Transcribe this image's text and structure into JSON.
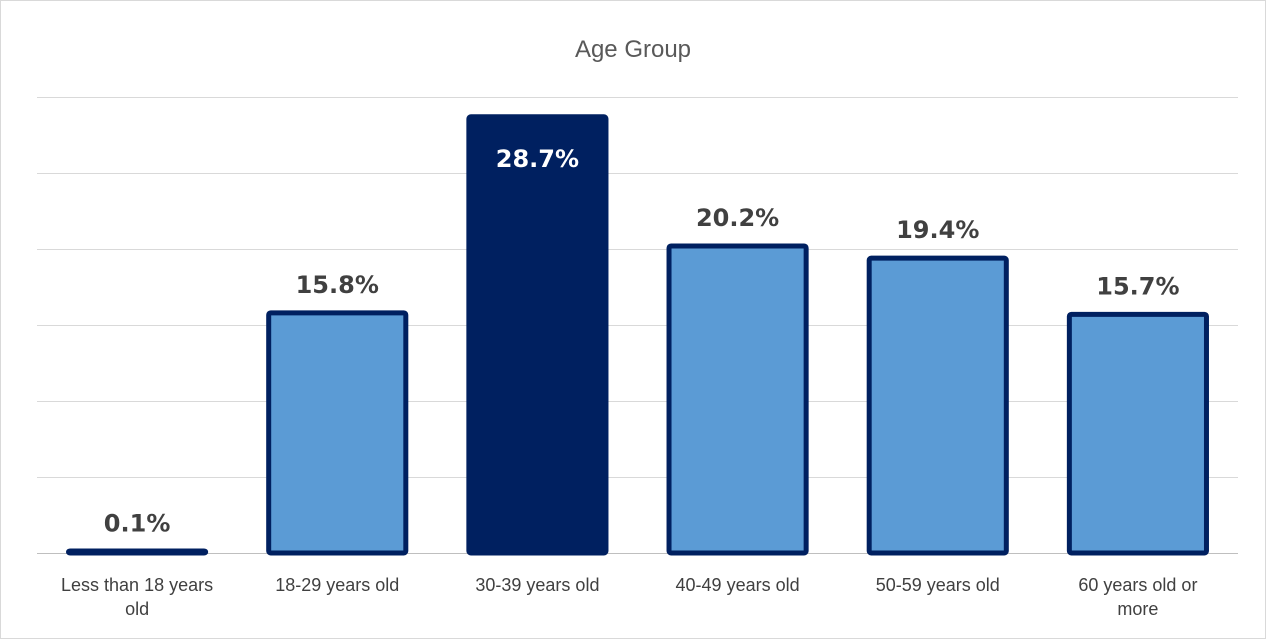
{
  "chart_data": {
    "type": "bar",
    "title": "Age Group",
    "categories": [
      [
        "Less than 18 years",
        "old"
      ],
      [
        "18-29 years old"
      ],
      [
        "30-39 years old"
      ],
      [
        "40-49 years old"
      ],
      [
        "50-59 years old"
      ],
      [
        "60 years old or",
        "more"
      ]
    ],
    "values": [
      0.1,
      15.8,
      28.7,
      20.2,
      19.4,
      15.7
    ],
    "data_labels": [
      "0.1%",
      "15.8%",
      "28.7%",
      "20.2%",
      "19.4%",
      "15.7%"
    ],
    "highlight_index": 2,
    "ylim": [
      0,
      30
    ],
    "grid": true,
    "legend": "none",
    "colors": {
      "bar_fill": "#5b9bd5",
      "bar_highlight": "#002060",
      "bar_border": "#002060",
      "label_dark": "#404040",
      "label_light": "#ffffff"
    }
  }
}
